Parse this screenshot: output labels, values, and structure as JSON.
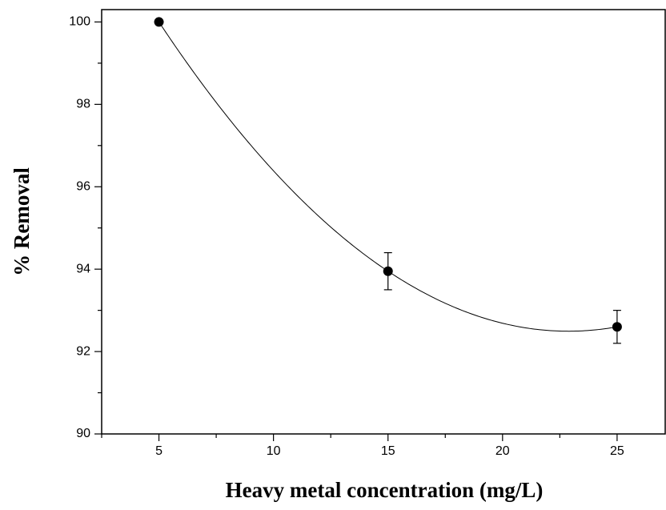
{
  "chart_data": {
    "type": "scatter",
    "xlabel": "Heavy metal concentration (mg/L)",
    "ylabel": "% Removal",
    "x": [
      5,
      15,
      25
    ],
    "values": [
      100,
      93.95,
      92.6
    ],
    "errors": [
      0,
      0.45,
      0.4
    ],
    "color": "#000000",
    "fit_curve": true,
    "xlim": [
      2.5,
      27.1
    ],
    "xticks": [
      5,
      10,
      15,
      20,
      25
    ],
    "xminorticks": [
      2.5,
      7.5,
      12.5,
      17.5,
      22.5
    ],
    "ylim": [
      90,
      100.3
    ],
    "yticks": [
      90,
      92,
      94,
      96,
      98,
      100
    ],
    "yminorticks": [
      91,
      93,
      95,
      97,
      99
    ]
  }
}
